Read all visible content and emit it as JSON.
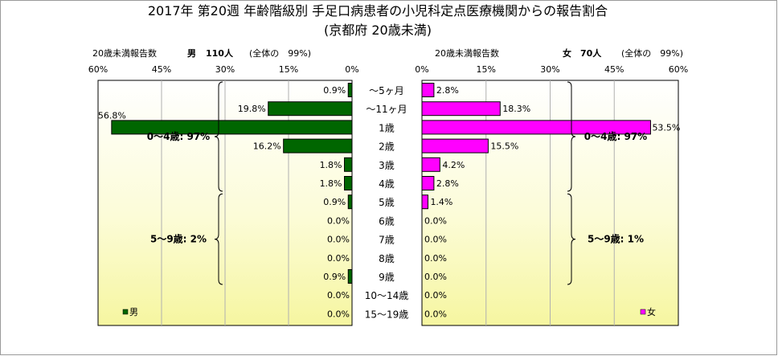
{
  "title_line1": "2017年 第20週 年齢階級別 手足口病患者の小児科定点医療機関からの報告割合",
  "title_line2": "(京都府 20歳未満)",
  "chart_data": [
    {
      "type": "bar",
      "orientation": "horizontal",
      "direction": "right-to-left",
      "header_label": "20歳未満報告数",
      "header_sex": "男",
      "header_count": "110人",
      "header_share": "(全体の　99%)",
      "xlim": [
        0,
        60
      ],
      "ticks": [
        60,
        45,
        30,
        15,
        0
      ],
      "tick_labels": [
        "60%",
        "45%",
        "30%",
        "15%",
        "0%"
      ],
      "grid": true,
      "values": [
        0.9,
        19.8,
        56.8,
        16.2,
        1.8,
        1.8,
        0.9,
        0.0,
        0.0,
        0.0,
        0.9,
        0.0,
        0.0
      ],
      "labels": [
        "0.9%",
        "19.8%",
        "56.8%",
        "16.2%",
        "1.8%",
        "1.8%",
        "0.9%",
        "0.0%",
        "0.0%",
        "0.0%",
        "0.9%",
        "0.0%",
        "0.0%"
      ],
      "color": "#006600",
      "legend": "男",
      "legend_position": "bottom-left",
      "groups": [
        {
          "label": "0～4歳: 97%",
          "from": 0,
          "to": 5
        },
        {
          "label": "5～9歳: 2%",
          "from": 6,
          "to": 10
        }
      ]
    },
    {
      "type": "bar",
      "orientation": "horizontal",
      "direction": "left-to-right",
      "header_label": "20歳未満報告数",
      "header_sex": "女",
      "header_count": "70人",
      "header_share": "(全体の　99%)",
      "xlim": [
        0,
        60
      ],
      "ticks": [
        0,
        15,
        30,
        45,
        60
      ],
      "tick_labels": [
        "0%",
        "15%",
        "30%",
        "45%",
        "60%"
      ],
      "grid": true,
      "values": [
        2.8,
        18.3,
        53.5,
        15.5,
        4.2,
        2.8,
        1.4,
        0.0,
        0.0,
        0.0,
        0.0,
        0.0,
        0.0
      ],
      "labels": [
        "2.8%",
        "18.3%",
        "53.5%",
        "15.5%",
        "4.2%",
        "2.8%",
        "1.4%",
        "0.0%",
        "0.0%",
        "0.0%",
        "0.0%",
        "0.0%",
        "0.0%"
      ],
      "color": "#ff00ff",
      "legend": "女",
      "legend_position": "bottom-right",
      "groups": [
        {
          "label": "0～4歳: 97%",
          "from": 0,
          "to": 5
        },
        {
          "label": "5～9歳: 1%",
          "from": 6,
          "to": 10
        }
      ]
    }
  ],
  "categories": [
    "～5ヶ月",
    "～11ヶ月",
    "1歳",
    "2歳",
    "3歳",
    "4歳",
    "5歳",
    "6歳",
    "7歳",
    "8歳",
    "9歳",
    "10～14歳",
    "15～19歳"
  ]
}
